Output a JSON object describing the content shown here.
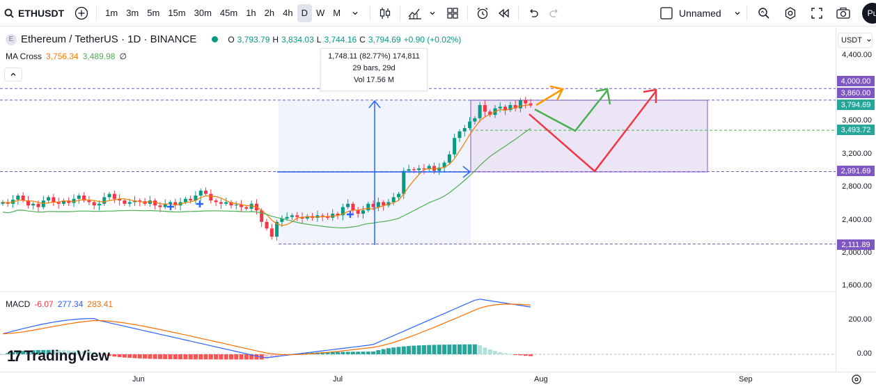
{
  "toolbar": {
    "symbol": "ETHUSDT",
    "intervals": [
      "1m",
      "3m",
      "5m",
      "15m",
      "30m",
      "45m",
      "1h",
      "2h",
      "4h",
      "D",
      "W",
      "M"
    ],
    "active_interval": "D",
    "layout_name": "Unnamed",
    "avatar_initial": "Pu"
  },
  "legend": {
    "pair": "Ethereum / TetherUS · 1D · BINANCE",
    "o_label": "O",
    "o_value": "3,793.79",
    "h_label": "H",
    "h_value": "3,834.03",
    "l_label": "L",
    "l_value": "3,744.16",
    "c_label": "C",
    "c_value": "3,794.69",
    "change": "+0.90 (+0.02%)"
  },
  "ma": {
    "name": "MA Cross",
    "fast": "3,756.34",
    "slow": "3,489.98",
    "sym": "∅"
  },
  "macd": {
    "name": "MACD",
    "hist": "-6.07",
    "macd": "277.34",
    "signal": "283.41"
  },
  "tooltip": {
    "line1": "1,748.11 (82.77%) 174,811",
    "line2": "29 bars, 29d",
    "line3": "Vol 17.56 M"
  },
  "price_axis": {
    "currency": "USDT",
    "ticks": [
      "4,400.00",
      "3,600.00",
      "3,200.00",
      "2,800.00",
      "2,400.00",
      "2,000.00",
      "1,600.00"
    ],
    "macd_ticks": [
      "200.00",
      "0.00"
    ],
    "badges": {
      "b4000": "4,000.00",
      "b3860": "3,860.00",
      "bcur": "3,794.69",
      "b3493": "3,493.72",
      "b2991": "2,991.69",
      "b2111": "2,111.89"
    }
  },
  "time_axis": [
    "Jun",
    "Jul",
    "Aug",
    "Sep"
  ],
  "brand": "TradingView",
  "colors": {
    "up": "#089981",
    "down": "#f23645",
    "ma_fast": "#f57c00",
    "ma_slow": "#4caf50",
    "macd_line": "#2962ff",
    "signal_line": "#ff6d00",
    "rect_fill": "#e8e0f4",
    "rect_border": "#7e57c2",
    "measure": "#2962ff",
    "arrow_orange": "#ff9800",
    "arrow_green": "#4caf50",
    "arrow_red": "#f23645"
  }
}
